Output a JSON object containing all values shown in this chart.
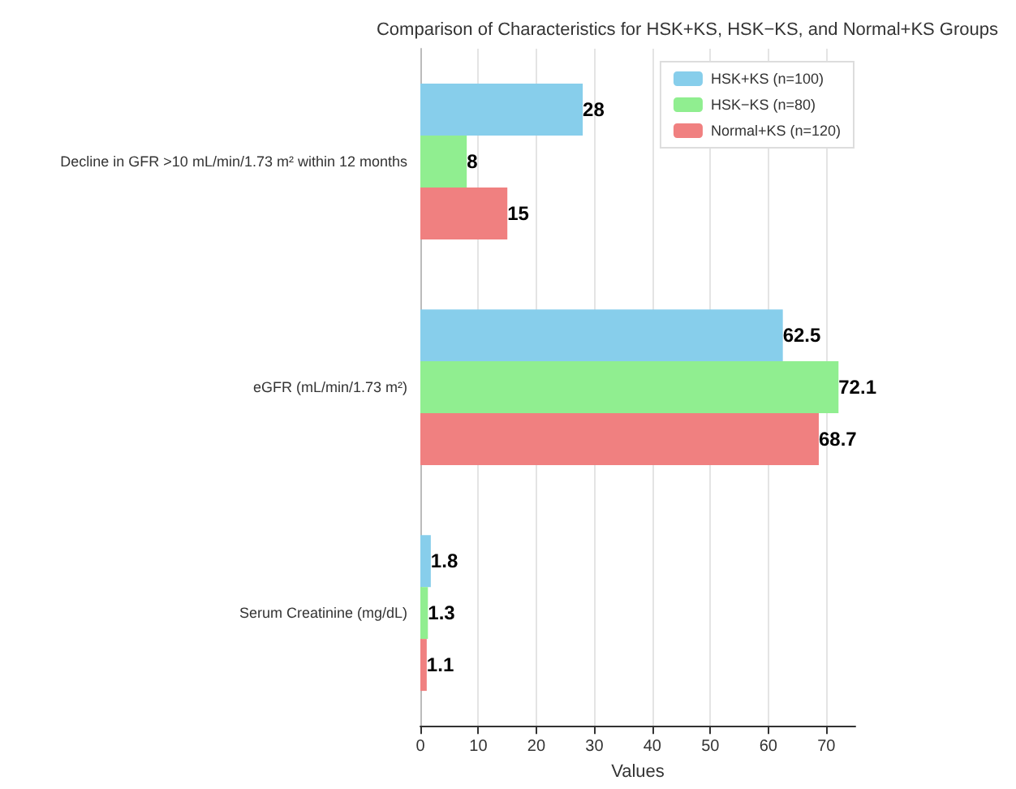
{
  "chart_data": {
    "type": "bar",
    "orientation": "horizontal",
    "title": "Comparison of Characteristics for HSK+KS, HSK−KS, and Normal+KS Groups",
    "xlabel": "Values",
    "categories": [
      "Decline in GFR >10 mL/min/1.73 m² within 12 months",
      "eGFR (mL/min/1.73 m²)",
      "Serum Creatinine (mg/dL)"
    ],
    "series": [
      {
        "name": "HSK+KS (n=100)",
        "color": "#87ceeb",
        "values": [
          28,
          62.5,
          1.8
        ]
      },
      {
        "name": "HSK−KS (n=80)",
        "color": "#90ee90",
        "values": [
          8,
          72.1,
          1.3
        ]
      },
      {
        "name": "Normal+KS (n=120)",
        "color": "#f08080",
        "values": [
          15,
          68.7,
          1.1
        ]
      }
    ],
    "xlim": [
      0,
      75
    ],
    "xticks": [
      0,
      10,
      20,
      30,
      40,
      50,
      60,
      70
    ],
    "grid": "x",
    "legend": "top right",
    "data_labels": true
  }
}
